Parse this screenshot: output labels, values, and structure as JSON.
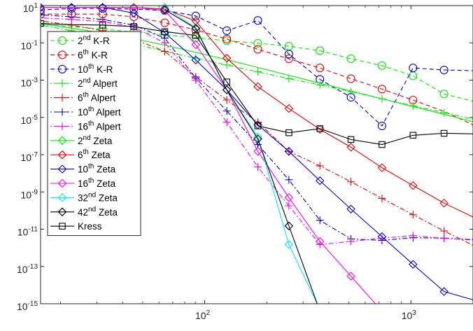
{
  "chart_data": {
    "type": "line",
    "xscale": "log",
    "yscale": "log",
    "xlim": [
      16,
      2000
    ],
    "ylim": [
      1e-15,
      10
    ],
    "grid": false,
    "legend_position": "top-left",
    "xticks": [
      {
        "value": 100,
        "base": "10",
        "exp": "2"
      },
      {
        "value": 1000,
        "base": "10",
        "exp": "3"
      }
    ],
    "yticks": [
      {
        "value": 10,
        "base": "10",
        "exp": "1"
      },
      {
        "value": 0.1,
        "base": "10",
        "exp": "-1"
      },
      {
        "value": 0.001,
        "base": "10",
        "exp": "-3"
      },
      {
        "value": 1e-05,
        "base": "10",
        "exp": "-5"
      },
      {
        "value": 1e-07,
        "base": "10",
        "exp": "-7"
      },
      {
        "value": 1e-09,
        "base": "10",
        "exp": "-9"
      },
      {
        "value": 1e-11,
        "base": "10",
        "exp": "-11"
      },
      {
        "value": 1e-13,
        "base": "10",
        "exp": "-13"
      },
      {
        "value": 1e-15,
        "base": "10",
        "exp": "-15"
      }
    ],
    "series": [
      {
        "name_num": "2",
        "name_sup": "nd",
        "name_text": " K-R",
        "color": "#00ee00",
        "dash": "6,4",
        "marker": "circle",
        "x": [
          16,
          22.6,
          32,
          45.3,
          64,
          90.5,
          128,
          181,
          256,
          362,
          512,
          724,
          1024,
          1448,
          2048
        ],
        "y": [
          1,
          0.75,
          0.55,
          0.38,
          0.27,
          0.19,
          0.13,
          0.095,
          0.066,
          0.038,
          0.014,
          0.006,
          0.0017,
          0.00018,
          7e-05
        ],
        "marker_idx": [
          2,
          3,
          4,
          5,
          6,
          7,
          8,
          9,
          10,
          11,
          12,
          13
        ]
      },
      {
        "name_num": "6",
        "name_sup": "th",
        "name_text": " K-R",
        "color": "#ee0000",
        "dash": "6,4",
        "marker": "circle",
        "x": [
          16,
          22.6,
          32,
          45.3,
          64,
          90.5,
          128,
          181,
          256,
          362,
          512,
          724,
          1024,
          1448,
          2048
        ],
        "y": [
          3.5,
          3.5,
          3.5,
          2.5,
          1.2,
          0.5,
          0.16,
          0.045,
          0.014,
          0.0045,
          0.0012,
          0.00033,
          8.5e-05,
          2.1e-05,
          3.5e-06
        ],
        "marker_idx": [
          0,
          1,
          2,
          3,
          4,
          5,
          6,
          7,
          8,
          9,
          10,
          11,
          12
        ]
      },
      {
        "name_num": "10",
        "name_sup": "th",
        "name_text": " K-R",
        "color": "#0000dd",
        "dash": "6,4",
        "marker": "circle",
        "x": [
          16,
          22.6,
          32,
          45.3,
          64,
          90.5,
          128,
          181,
          256,
          362,
          512,
          724,
          1024,
          1448,
          2048
        ],
        "y": [
          5.8,
          7,
          7,
          6.5,
          5.5,
          2.8,
          0.45,
          1.6,
          0.025,
          0.0011,
          0.00012,
          3.5e-06,
          0.0045,
          0.0035,
          0.0032
        ],
        "marker_idx": [
          0,
          1,
          2,
          3,
          4,
          5,
          6,
          7,
          8,
          9,
          10,
          11,
          12,
          13
        ]
      },
      {
        "name_num": "2",
        "name_sup": "nd",
        "name_text": " Alpert",
        "color": "#00ee00",
        "dash": "2,3,7,3",
        "marker": "plus",
        "x": [
          16,
          22.6,
          32,
          45.3,
          64,
          90.5,
          128,
          181,
          256,
          362,
          512,
          724,
          1024,
          1448,
          2048
        ],
        "y": [
          0.9,
          0.45,
          0.2,
          0.09,
          0.035,
          0.015,
          0.0065,
          0.0028,
          0.0012,
          0.00055,
          0.00024,
          0.0001,
          4.2e-05,
          1.8e-05,
          7.5e-06
        ],
        "marker_idx": [
          0,
          1,
          2,
          3,
          4,
          5,
          6,
          7,
          8,
          9,
          10,
          11,
          12,
          13
        ]
      },
      {
        "name_num": "6",
        "name_sup": "th",
        "name_text": " Alpert",
        "color": "#ee0000",
        "dash": "2,3,7,3",
        "marker": "plus",
        "x": [
          16,
          22.6,
          32,
          45.3,
          64,
          90.5,
          128,
          181,
          256,
          362,
          512,
          724,
          1024,
          1448,
          2048
        ],
        "y": [
          1.5,
          0.9,
          0.45,
          0.16,
          0.035,
          0.0015,
          8.5e-05,
          5.5e-06,
          1.5e-07,
          2.5e-08,
          3.5e-09,
          4.5e-10,
          6e-11,
          8e-12,
          1.2e-12
        ],
        "marker_idx": [
          1,
          2,
          3,
          4,
          5,
          6,
          7,
          8,
          9,
          10,
          11,
          12,
          13
        ]
      },
      {
        "name_num": "10",
        "name_sup": "th",
        "name_text": " Alpert",
        "color": "#0000dd",
        "dash": "2,3,7,3",
        "marker": "plus",
        "x": [
          16,
          22.6,
          32,
          45.3,
          64,
          90.5,
          128,
          181,
          256,
          362,
          512,
          724,
          1024,
          1448,
          2048
        ],
        "y": [
          3.2,
          2.5,
          1.8,
          0.9,
          0.18,
          0.0013,
          2.2e-05,
          3.5e-07,
          4.5e-09,
          3e-11,
          3e-12,
          2.5e-12,
          3.5e-12,
          3.3e-12,
          2.6e-12
        ],
        "marker_idx": [
          0,
          1,
          2,
          3,
          4,
          5,
          6,
          7,
          8,
          9,
          10,
          11,
          12,
          13
        ]
      },
      {
        "name_num": "16",
        "name_sup": "th",
        "name_text": " Alpert",
        "color": "#ff00ff",
        "dash": "2,3,7,3",
        "marker": "plus",
        "x": [
          16,
          22.6,
          32,
          45.3,
          64,
          90.5,
          128,
          181,
          256,
          362,
          512,
          724,
          1024,
          1448,
          2048
        ],
        "y": [
          2.2,
          1.8,
          1.4,
          0.7,
          0.1,
          0.001,
          5.5e-06,
          2.2e-08,
          1.8e-10,
          1.5e-12,
          2.2e-12,
          3.3e-12,
          4.5e-12,
          3.2e-12,
          2.8e-12
        ],
        "marker_idx": [
          0,
          1,
          2,
          3,
          4,
          5,
          6,
          7,
          8,
          9,
          10,
          11,
          12,
          13
        ]
      },
      {
        "name_num": "2",
        "name_sup": "nd",
        "name_text": " Zeta",
        "color": "#00ee00",
        "dash": "",
        "marker": "diamond",
        "x": [
          16,
          22.6,
          32,
          45.3,
          64,
          90.5,
          128,
          181,
          256,
          362,
          512,
          724,
          1024,
          1448,
          2048
        ],
        "y": [
          1.1,
          0.62,
          0.34,
          0.17,
          0.075,
          0.031,
          0.0125,
          0.0048,
          0.0018,
          0.00069,
          0.00026,
          0.0001,
          3.8e-05,
          1.45e-05,
          5.5e-06
        ],
        "marker_idx": []
      },
      {
        "name_num": "6",
        "name_sup": "th",
        "name_text": " Zeta",
        "color": "#ee0000",
        "dash": "",
        "marker": "diamond",
        "x": [
          16,
          22.6,
          32,
          45.3,
          64,
          90.5,
          128,
          181,
          256,
          362,
          512,
          724,
          1024,
          1448,
          2048
        ],
        "y": [
          8,
          8,
          8,
          8,
          6.5,
          1.5,
          0.015,
          0.00045,
          3e-05,
          2.3e-06,
          2.5e-07,
          2e-08,
          2.2e-09,
          2.5e-10,
          4e-11
        ],
        "marker_idx": [
          0,
          1,
          2,
          3,
          4,
          5,
          6,
          7,
          8,
          9,
          10,
          11,
          12,
          13
        ]
      },
      {
        "name_num": "10",
        "name_sup": "th",
        "name_text": " Zeta",
        "color": "#0000dd",
        "dash": "",
        "marker": "diamond",
        "x": [
          16,
          22.6,
          32,
          45.3,
          64,
          90.5,
          128,
          181,
          256,
          362,
          512,
          724,
          1024,
          1448,
          2048
        ],
        "y": [
          8,
          8,
          8,
          4,
          0.35,
          0.012,
          0.0003,
          4e-06,
          1.5e-07,
          4e-09,
          1.2e-10,
          4e-12,
          1.3e-13,
          4.5e-15,
          1.5e-15
        ],
        "marker_idx": [
          0,
          1,
          2,
          3,
          4,
          5,
          6,
          7,
          8,
          9,
          10,
          11,
          12,
          13
        ]
      },
      {
        "name_num": "16",
        "name_sup": "th",
        "name_text": " Zeta",
        "color": "#ff00ff",
        "dash": "",
        "marker": "diamond",
        "x": [
          16,
          22.6,
          32,
          45.3,
          64,
          90.5,
          128,
          181,
          256,
          362,
          512,
          724,
          1024,
          1448,
          2048
        ],
        "y": [
          8,
          8,
          8,
          8,
          5.5,
          0.08,
          0.0003,
          1.5e-07,
          5e-10,
          2.2e-12,
          3e-14,
          4e-16,
          4e-16,
          4e-16,
          4e-16
        ],
        "marker_idx": [
          4,
          5,
          6,
          7,
          8,
          9,
          10,
          11
        ]
      },
      {
        "name_num": "32",
        "name_sup": "nd",
        "name_text": " Zeta",
        "color": "#00eeee",
        "dash": "",
        "marker": "diamond",
        "x": [
          64,
          90.5,
          128,
          181,
          256,
          362,
          512,
          724,
          1024,
          1448,
          2048
        ],
        "y": [
          8,
          0.65,
          0.0003,
          9e-07,
          1.5e-12,
          5e-16,
          4e-16,
          4e-16,
          4e-16,
          4e-16,
          4e-16
        ],
        "marker_idx": [
          0,
          1,
          2,
          3,
          4,
          5,
          6,
          7,
          8,
          9
        ]
      },
      {
        "name_num": "42",
        "name_sup": "nd",
        "name_text": " Zeta",
        "color": "#000000",
        "dash": "",
        "marker": "diamond",
        "x": [
          64,
          90.5,
          128,
          181,
          256,
          362,
          512,
          724,
          1024,
          1448,
          2048
        ],
        "y": [
          6,
          0.6,
          0.0003,
          7e-07,
          1.5e-11,
          4e-16,
          4e-16,
          4e-16,
          4e-16,
          4e-16,
          4e-16
        ],
        "marker_idx": [
          0,
          1,
          2,
          3,
          4,
          5,
          6,
          7,
          8,
          9
        ]
      },
      {
        "name_num": "",
        "name_sup": "",
        "name_text": "Kress",
        "color": "#000000",
        "dash": "",
        "marker": "square",
        "x": [
          16,
          22.6,
          32,
          45.3,
          64,
          90.5,
          128,
          181,
          256,
          362,
          512,
          724,
          1024,
          1448,
          2048
        ],
        "y": [
          1.1,
          0.95,
          0.9,
          0.75,
          0.4,
          0.25,
          0.0008,
          3.5e-06,
          1.5e-06,
          2.5e-06,
          6.5e-07,
          3.5e-07,
          1.1e-06,
          1.4e-06,
          1.3e-06
        ],
        "marker_idx": [
          0,
          2,
          3,
          4,
          5,
          6,
          7,
          8,
          9,
          10,
          11,
          12,
          13
        ]
      }
    ]
  }
}
